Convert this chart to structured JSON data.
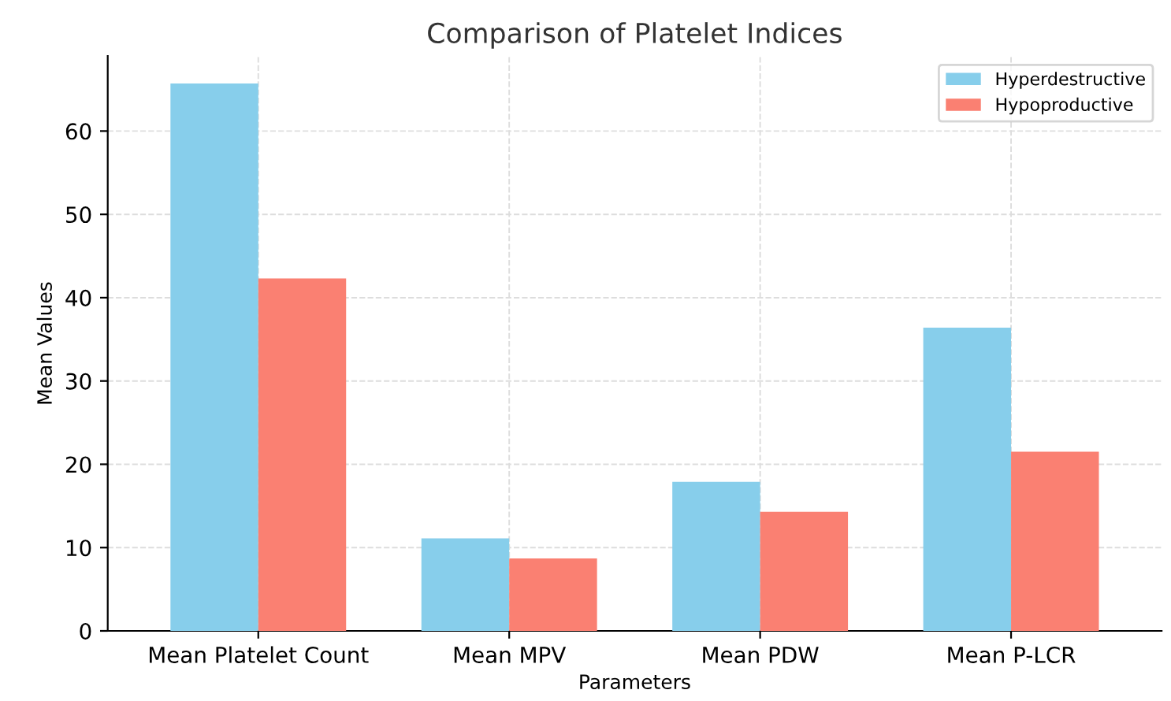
{
  "chart_data": {
    "type": "bar",
    "title": "Comparison of Platelet Indices",
    "xlabel": "Parameters",
    "ylabel": "Mean Values",
    "categories": [
      "Mean Platelet Count",
      "Mean MPV",
      "Mean PDW",
      "Mean P-LCR"
    ],
    "series": [
      {
        "name": "Hyperdestructive",
        "color": "#87ceeb",
        "values": [
          65.7,
          11.1,
          17.9,
          36.4
        ]
      },
      {
        "name": "Hypoproductive",
        "color": "#fa8072",
        "values": [
          42.3,
          8.7,
          14.3,
          21.5
        ]
      }
    ],
    "ylim": [
      0,
      69
    ],
    "yticks": [
      0,
      10,
      20,
      30,
      40,
      50,
      60
    ],
    "grid": true,
    "legend": "top right"
  }
}
